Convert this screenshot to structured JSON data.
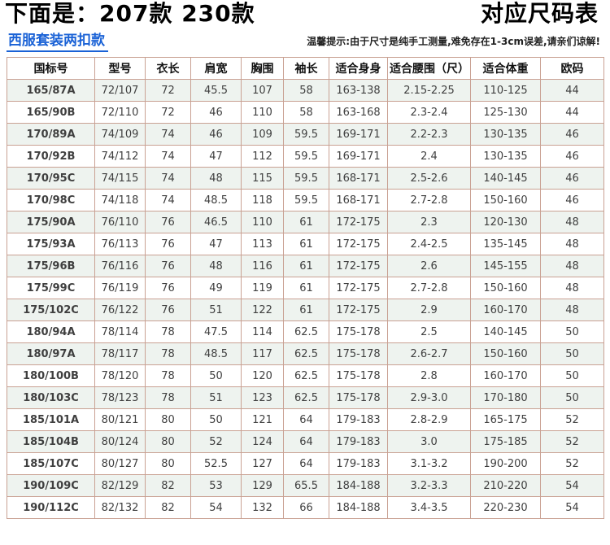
{
  "header": {
    "title_left": "下面是：207款  230款",
    "title_right": "对应尺码表",
    "subtitle": "西服套装两扣款",
    "tip": "温馨提示:由于尺寸是纯手工测量,难免存在1-3cm误差,请亲们谅解!"
  },
  "colors": {
    "subtitle_blue": "#1a62d6",
    "gb_code_red": "#c1272d",
    "gb_code_dark": "#574740",
    "grid_border": "#c9a193",
    "row_tint": "#eef3ef"
  },
  "table": {
    "columns": [
      "国标号",
      "型号",
      "衣长",
      "肩宽",
      "胸围",
      "袖长",
      "适合身身",
      "适合腰围（尺）",
      "适合体重",
      "欧码"
    ],
    "red_rows": [
      0,
      1,
      6,
      7,
      8,
      9,
      10,
      15,
      16,
      17
    ],
    "rows": [
      [
        "165/87A",
        "72/107",
        "72",
        "45.5",
        "107",
        "58",
        "163-138",
        "2.15-2.25",
        "110-125",
        "44"
      ],
      [
        "165/90B",
        "72/110",
        "72",
        "46",
        "110",
        "58",
        "163-168",
        "2.3-2.4",
        "125-130",
        "44"
      ],
      [
        "170/89A",
        "74/109",
        "74",
        "46",
        "109",
        "59.5",
        "169-171",
        "2.2-2.3",
        "130-135",
        "46"
      ],
      [
        "170/92B",
        "74/112",
        "74",
        "47",
        "112",
        "59.5",
        "169-171",
        "2.4",
        "130-135",
        "46"
      ],
      [
        "170/95C",
        "74/115",
        "74",
        "48",
        "115",
        "59.5",
        "168-171",
        "2.5-2.6",
        "140-145",
        "46"
      ],
      [
        "170/98C",
        "74/118",
        "74",
        "48.5",
        "118",
        "59.5",
        "168-171",
        "2.7-2.8",
        "150-160",
        "46"
      ],
      [
        "175/90A",
        "76/110",
        "76",
        "46.5",
        "110",
        "61",
        "172-175",
        "2.3",
        "120-130",
        "48"
      ],
      [
        "175/93A",
        "76/113",
        "76",
        "47",
        "113",
        "61",
        "172-175",
        "2.4-2.5",
        "135-145",
        "48"
      ],
      [
        "175/96B",
        "76/116",
        "76",
        "48",
        "116",
        "61",
        "172-175",
        "2.6",
        "145-155",
        "48"
      ],
      [
        "175/99C",
        "76/119",
        "76",
        "49",
        "119",
        "61",
        "172-175",
        "2.7-2.8",
        "150-160",
        "48"
      ],
      [
        "175/102C",
        "76/122",
        "76",
        "51",
        "122",
        "61",
        "172-175",
        "2.9",
        "160-170",
        "48"
      ],
      [
        "180/94A",
        "78/114",
        "78",
        "47.5",
        "114",
        "62.5",
        "175-178",
        "2.5",
        "140-145",
        "50"
      ],
      [
        "180/97A",
        "78/117",
        "78",
        "48.5",
        "117",
        "62.5",
        "175-178",
        "2.6-2.7",
        "150-160",
        "50"
      ],
      [
        "180/100B",
        "78/120",
        "78",
        "50",
        "120",
        "62.5",
        "175-178",
        "2.8",
        "160-170",
        "50"
      ],
      [
        "180/103C",
        "78/123",
        "78",
        "51",
        "123",
        "62.5",
        "175-178",
        "2.9-3.0",
        "170-180",
        "50"
      ],
      [
        "185/101A",
        "80/121",
        "80",
        "50",
        "121",
        "64",
        "179-183",
        "2.8-2.9",
        "165-175",
        "52"
      ],
      [
        "185/104B",
        "80/124",
        "80",
        "52",
        "124",
        "64",
        "179-183",
        "3.0",
        "175-185",
        "52"
      ],
      [
        "185/107C",
        "80/127",
        "80",
        "52.5",
        "127",
        "64",
        "179-183",
        "3.1-3.2",
        "190-200",
        "52"
      ],
      [
        "190/109C",
        "82/129",
        "82",
        "53",
        "129",
        "65.5",
        "184-188",
        "3.2-3.3",
        "210-220",
        "54"
      ],
      [
        "190/112C",
        "82/132",
        "82",
        "54",
        "132",
        "66",
        "184-188",
        "3.4-3.5",
        "220-230",
        "54"
      ]
    ]
  }
}
